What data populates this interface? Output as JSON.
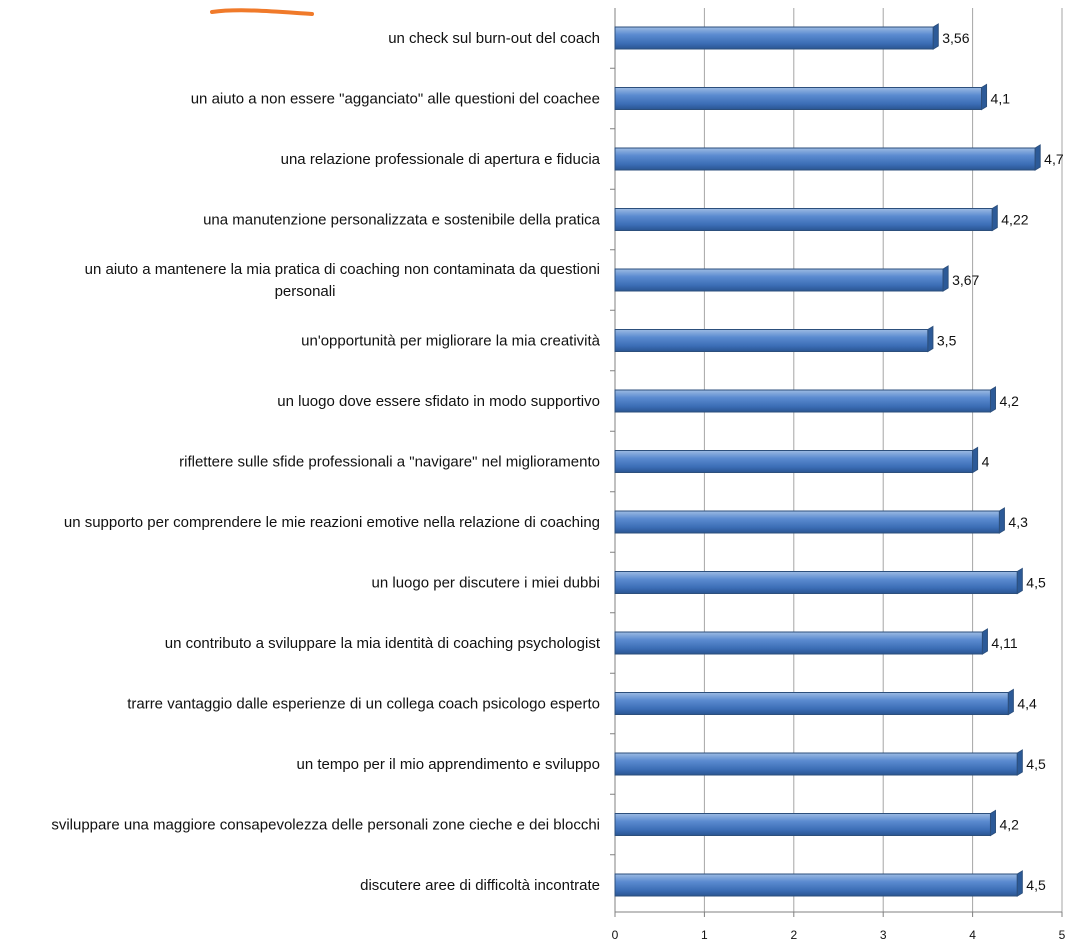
{
  "chart_data": {
    "type": "bar",
    "orientation": "horizontal",
    "categories": [
      [
        "un check sul burn-out del coach"
      ],
      [
        "un aiuto a non essere \"agganciato\" alle questioni del coachee"
      ],
      [
        "una relazione professionale di apertura e fiducia"
      ],
      [
        "una manutenzione personalizzata e sostenibile della pratica"
      ],
      [
        "un aiuto a mantenere la mia pratica di coaching non contaminata da questioni",
        "personali"
      ],
      [
        "un'opportunità per migliorare la mia creatività"
      ],
      [
        "un luogo dove essere sfidato in modo supportivo"
      ],
      [
        "riflettere sulle sfide professionali a \"navigare\" nel miglioramento"
      ],
      [
        "un supporto per comprendere le mie reazioni emotive nella relazione di coaching"
      ],
      [
        "un luogo per discutere i miei dubbi"
      ],
      [
        "un contributo a sviluppare la mia identità di coaching psychologist"
      ],
      [
        "trarre vantaggio dalle esperienze di un collega coach psicologo esperto"
      ],
      [
        "un tempo per il mio apprendimento e sviluppo"
      ],
      [
        "sviluppare una maggiore consapevolezza delle personali zone cieche e dei blocchi"
      ],
      [
        "discutere aree di difficoltà incontrate"
      ]
    ],
    "values": [
      3.56,
      4.1,
      4.7,
      4.22,
      3.67,
      3.5,
      4.2,
      4.0,
      4.3,
      4.5,
      4.11,
      4.4,
      4.5,
      4.2,
      4.5
    ],
    "value_labels": [
      "3,56",
      "4,1",
      "4,7",
      "4,22",
      "3,67",
      "3,5",
      "4,2",
      "4",
      "4,3",
      "4,5",
      "4,11",
      "4,4",
      "4,5",
      "4,2",
      "4,5"
    ],
    "xlim": [
      0,
      5
    ],
    "x_ticks": [
      "0",
      "1",
      "2",
      "3",
      "4",
      "5"
    ],
    "grid": true,
    "bar_color": "#4f81bd",
    "bar_edge_color": "#2c4f7c"
  }
}
